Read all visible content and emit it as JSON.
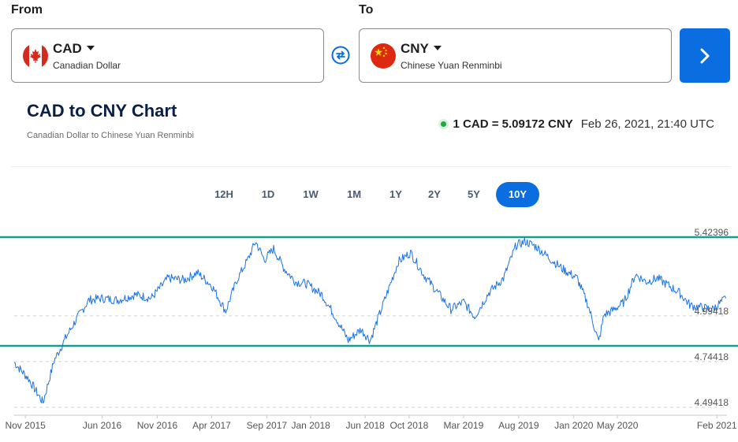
{
  "from": {
    "label": "From",
    "code": "CAD",
    "name": "Canadian Dollar",
    "flag_icon": "canada-flag-icon"
  },
  "to": {
    "label": "To",
    "code": "CNY",
    "name": "Chinese Yuan Renminbi",
    "flag_icon": "china-flag-icon"
  },
  "swap_icon": "swap-arrows-icon",
  "convert_icon": "chevron-right-icon",
  "accent": "#0a6ee0",
  "title": "CAD to CNY Chart",
  "subtitle": "Canadian Dollar to Chinese Yuan Renminbi",
  "rate": {
    "value": "1 CAD = 5.09172 CNY",
    "timestamp": "Feb 26, 2021, 21:40 UTC",
    "status_color": "#1faa3a"
  },
  "ranges": [
    "12H",
    "1D",
    "1W",
    "1M",
    "1Y",
    "2Y",
    "5Y",
    "10Y"
  ],
  "active_range": "10Y",
  "chart_data": {
    "type": "line",
    "series_color": "#1a73e8",
    "band_color": "#139e93",
    "band_lines": [
      5.42396,
      4.83
    ],
    "ylim": [
      4.49418,
      5.42396
    ],
    "y_ticks": [
      "5.42396",
      "4.99418",
      "4.74418",
      "4.49418"
    ],
    "x_ticks": [
      "Nov 2015",
      "Jun 2016",
      "Nov 2016",
      "Apr 2017",
      "Sep 2017",
      "Jan 2018",
      "Jun 2018",
      "Oct 2018",
      "Mar 2019",
      "Aug 2019",
      "Jan 2020",
      "May 2020",
      "Feb 2021"
    ],
    "x_tick_dates": [
      "2015-11-01",
      "2016-06-01",
      "2016-11-01",
      "2017-04-01",
      "2017-09-01",
      "2018-01-01",
      "2018-06-01",
      "2018-10-01",
      "2019-03-01",
      "2019-08-01",
      "2020-01-01",
      "2020-05-01",
      "2021-02-01"
    ],
    "xlim": [
      "2015-10-01",
      "2021-03-01"
    ],
    "x": [
      "2015-10-01",
      "2015-11-10",
      "2015-12-20",
      "2016-01-20",
      "2016-02-20",
      "2016-03-20",
      "2016-04-25",
      "2016-06-01",
      "2016-07-15",
      "2016-09-01",
      "2016-10-15",
      "2016-12-01",
      "2017-01-15",
      "2017-02-20",
      "2017-04-01",
      "2017-05-10",
      "2017-06-10",
      "2017-07-10",
      "2017-08-01",
      "2017-08-25",
      "2017-09-20",
      "2017-10-20",
      "2017-11-20",
      "2017-12-20",
      "2018-02-01",
      "2018-03-10",
      "2018-04-15",
      "2018-05-20",
      "2018-06-15",
      "2018-07-25",
      "2018-09-01",
      "2018-10-05",
      "2018-11-10",
      "2018-12-20",
      "2019-01-25",
      "2019-03-01",
      "2019-04-01",
      "2019-05-10",
      "2019-06-20",
      "2019-07-25",
      "2019-08-20",
      "2019-09-20",
      "2019-10-25",
      "2019-12-01",
      "2020-01-10",
      "2020-02-10",
      "2020-03-10",
      "2020-03-25",
      "2020-04-15",
      "2020-05-20",
      "2020-06-20",
      "2020-07-20",
      "2020-08-20",
      "2020-09-20",
      "2020-10-20",
      "2020-11-20",
      "2020-12-20",
      "2021-01-20",
      "2021-02-26"
    ],
    "values": [
      4.74,
      4.65,
      4.52,
      4.75,
      4.87,
      4.97,
      5.08,
      5.09,
      5.08,
      5.11,
      5.09,
      5.2,
      5.19,
      5.23,
      5.16,
      5.02,
      5.19,
      5.3,
      5.4,
      5.3,
      5.36,
      5.25,
      5.18,
      5.17,
      5.11,
      4.99,
      4.86,
      4.92,
      4.86,
      5.08,
      5.29,
      5.34,
      5.22,
      5.12,
      5.03,
      5.07,
      4.99,
      5.12,
      5.2,
      5.38,
      5.4,
      5.37,
      5.31,
      5.25,
      5.2,
      5.05,
      4.85,
      5.0,
      5.02,
      5.07,
      5.22,
      5.18,
      5.2,
      5.16,
      5.12,
      5.05,
      5.04,
      5.03,
      5.09
    ]
  }
}
